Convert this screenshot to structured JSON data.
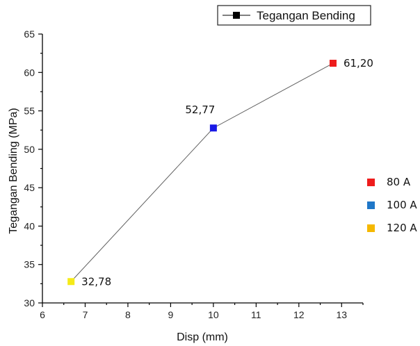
{
  "chart_data": {
    "type": "line",
    "xlabel": "Disp (mm)",
    "ylabel": "Tegangan Bending (MPa)",
    "xlim": [
      6,
      13.5
    ],
    "ylim": [
      30,
      65
    ],
    "x_ticks": [
      "6",
      "7",
      "8",
      "9",
      "10",
      "11",
      "12",
      "13"
    ],
    "y_ticks": [
      "30",
      "35",
      "40",
      "45",
      "50",
      "55",
      "60",
      "65"
    ],
    "series": [
      {
        "name": "Tegangan Bending",
        "line_color": "#606060",
        "points": [
          {
            "x": 6.67,
            "y": 32.78,
            "label": "32,78",
            "color": "#f5ea18",
            "category": "120 A"
          },
          {
            "x": 10.0,
            "y": 52.77,
            "label": "52,77",
            "color": "#1a1ae6",
            "category": "100 A"
          },
          {
            "x": 12.8,
            "y": 61.2,
            "label": "61,20",
            "color": "#ee1c1c",
            "category": "80 A"
          }
        ]
      }
    ],
    "legend": {
      "label": "Tegangan Bending",
      "placement": "top-right"
    },
    "category_legend": [
      {
        "label": "80 A",
        "color": "#ee1c1c"
      },
      {
        "label": "100 A",
        "color": "#1f77c8"
      },
      {
        "label": "120 A",
        "color": "#f5b800"
      }
    ],
    "grid": false
  }
}
